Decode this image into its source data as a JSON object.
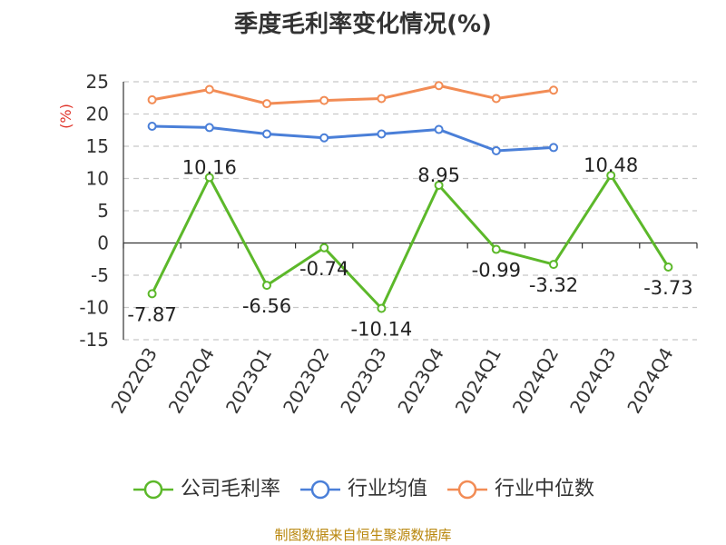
{
  "chart_data": {
    "type": "line",
    "title": "季度毛利率变化情况(%)",
    "ylabel": "(%)",
    "categories": [
      "2022Q3",
      "2022Q4",
      "2023Q1",
      "2023Q2",
      "2023Q3",
      "2023Q4",
      "2024Q1",
      "2024Q2",
      "2024Q3",
      "2024Q4"
    ],
    "ylim": [
      -15,
      25
    ],
    "yticks": [
      -15,
      -10,
      -5,
      0,
      5,
      10,
      15,
      20,
      25
    ],
    "grid": true,
    "legend_position": "bottom",
    "series": [
      {
        "name": "公司毛利率",
        "color": "#5cb82a",
        "values": [
          -7.87,
          10.16,
          -6.56,
          -0.74,
          -10.14,
          8.95,
          -0.99,
          -3.32,
          10.48,
          -3.73
        ],
        "labels": [
          "-7.87",
          "10.16",
          "-6.56",
          "-0.74",
          "-10.14",
          "8.95",
          "-0.99",
          "-3.32",
          "10.48",
          "-3.73"
        ]
      },
      {
        "name": "行业均值",
        "color": "#4a7fd8",
        "values": [
          18.1,
          17.9,
          16.9,
          16.3,
          16.9,
          17.6,
          14.3,
          14.8,
          null,
          null
        ]
      },
      {
        "name": "行业中位数",
        "color": "#f28c55",
        "values": [
          22.2,
          23.8,
          21.6,
          22.1,
          22.4,
          24.4,
          22.4,
          23.7,
          null,
          null
        ]
      }
    ]
  },
  "source": "制图数据来自恒生聚源数据库"
}
